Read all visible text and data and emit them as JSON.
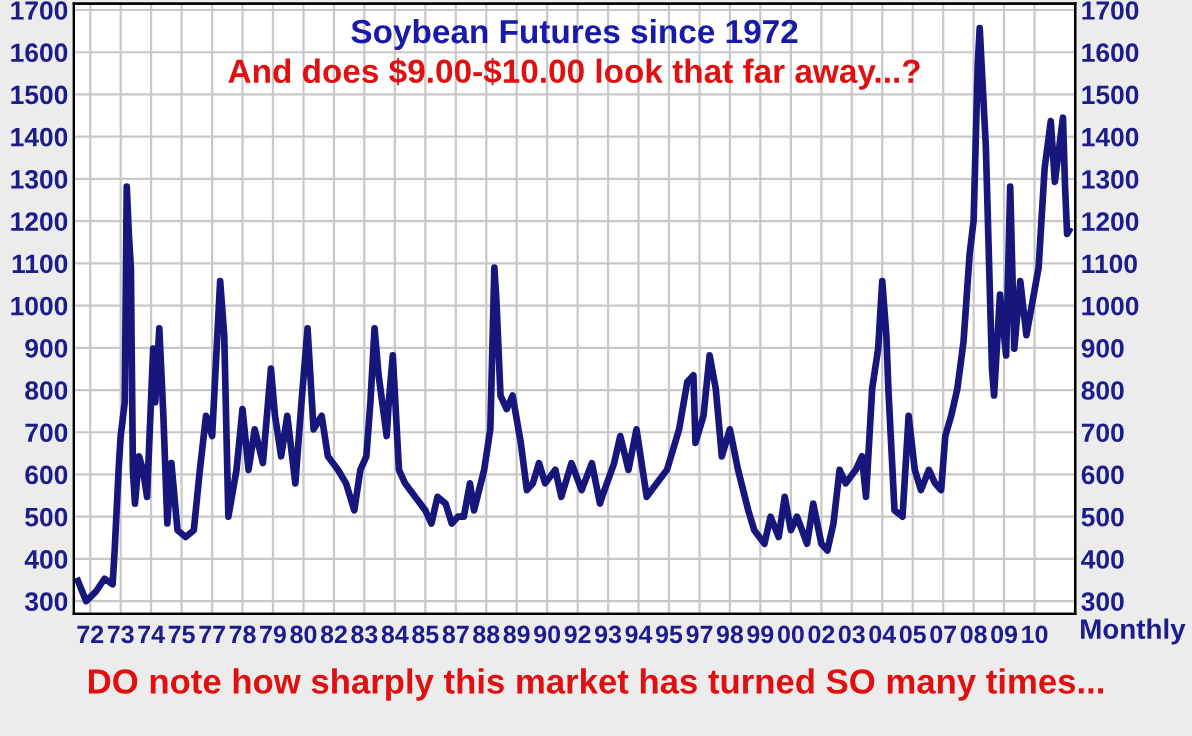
{
  "chart_data": {
    "type": "line",
    "title": "Soybean Futures since 1972",
    "annotations": [
      "And does $9.00-$10.00 look that far away...?",
      "Monthly",
      "DO note how sharply this market has turned SO many times..."
    ],
    "x": [
      "1971-07",
      "1971-11",
      "1972-04",
      "1972-08",
      "1972-12",
      "1973-01",
      "1973-03",
      "1973-04",
      "1973-06",
      "1973-07",
      "1973-08",
      "1973-09",
      "1973-10",
      "1973-11",
      "1974-01",
      "1974-03",
      "1974-05",
      "1974-08",
      "1974-09",
      "1974-11",
      "1975-01",
      "1975-03",
      "1975-05",
      "1975-08",
      "1975-12",
      "1976-04",
      "1976-07",
      "1976-10",
      "1977-01",
      "1977-05",
      "1977-07",
      "1977-09",
      "1978-01",
      "1978-04",
      "1978-07",
      "1978-10",
      "1979-02",
      "1979-06",
      "1979-08",
      "1979-11",
      "1980-02",
      "1980-06",
      "1980-09",
      "1980-12",
      "1981-03",
      "1981-07",
      "1981-10",
      "1982-03",
      "1982-07",
      "1982-11",
      "1983-02",
      "1983-05",
      "1983-07",
      "1983-09",
      "1983-11",
      "1984-03",
      "1984-04",
      "1984-06",
      "1984-09",
      "1984-12",
      "1985-05",
      "1985-10",
      "1986-01",
      "1986-04",
      "1986-08",
      "1986-11",
      "1987-02",
      "1987-05",
      "1987-08",
      "1987-10",
      "1988-03",
      "1988-06",
      "1988-08",
      "1988-09",
      "1988-11",
      "1989-02",
      "1989-05",
      "1989-09",
      "1989-12",
      "1990-03",
      "1990-06",
      "1990-09",
      "1991-02",
      "1991-05",
      "1991-10",
      "1992-03",
      "1992-08",
      "1992-12",
      "1993-01",
      "1993-07",
      "1993-10",
      "1994-02",
      "1994-06",
      "1994-11",
      "1995-04",
      "1995-09",
      "1996-03",
      "1996-07",
      "1996-10",
      "1996-11",
      "1997-03",
      "1997-06",
      "1997-09",
      "1997-12",
      "1998-04",
      "1998-08",
      "1999-01",
      "1999-04",
      "1999-09",
      "1999-12",
      "2000-04",
      "2000-07",
      "2000-10",
      "2001-01",
      "2001-06",
      "2001-09",
      "2002-01",
      "2002-04",
      "2002-07",
      "2002-10",
      "2003-01",
      "2003-06",
      "2003-09",
      "2003-11",
      "2004-02",
      "2004-05",
      "2004-07",
      "2004-09",
      "2004-10",
      "2005-01",
      "2005-05",
      "2005-08",
      "2005-11",
      "2006-02",
      "2006-06",
      "2006-09",
      "2006-12",
      "2007-02",
      "2007-05",
      "2007-08",
      "2007-11",
      "2008-02",
      "2008-04",
      "2008-06",
      "2008-07",
      "2008-10",
      "2009-01",
      "2009-02",
      "2009-05",
      "2009-08",
      "2009-10",
      "2009-12",
      "2010-03",
      "2010-06",
      "2010-09",
      "2010-12",
      "2011-03",
      "2011-06",
      "2011-08",
      "2011-12",
      "2012-01",
      "2012-02",
      "2012-03"
    ],
    "series": [
      {
        "color": "#16167c",
        "values": [
          348,
          300,
          324,
          353,
          340,
          420,
          611,
          691,
          771,
          1282,
          1170,
          1090,
          611,
          531,
          643,
          611,
          547,
          898,
          771,
          946,
          739,
          484,
          627,
          468,
          452,
          468,
          611,
          739,
          691,
          1058,
          930,
          500,
          611,
          755,
          611,
          707,
          627,
          851,
          739,
          643,
          739,
          579,
          771,
          946,
          707,
          739,
          643,
          611,
          579,
          515,
          611,
          643,
          771,
          946,
          835,
          691,
          771,
          882,
          611,
          579,
          547,
          515,
          484,
          547,
          531,
          484,
          500,
          500,
          579,
          515,
          611,
          707,
          1090,
          1010,
          787,
          755,
          787,
          675,
          563,
          579,
          627,
          579,
          611,
          547,
          627,
          563,
          627,
          531,
          547,
          627,
          691,
          611,
          707,
          547,
          579,
          611,
          707,
          819,
          835,
          675,
          739,
          882,
          803,
          643,
          707,
          611,
          515,
          468,
          436,
          500,
          452,
          547,
          468,
          500,
          436,
          531,
          436,
          420,
          484,
          611,
          579,
          611,
          643,
          547,
          803,
          898,
          1058,
          930,
          803,
          515,
          500,
          739,
          611,
          563,
          611,
          579,
          563,
          691,
          739,
          803,
          914,
          1122,
          1202,
          1569,
          1657,
          1377,
          851,
          787,
          1026,
          882,
          1282,
          898,
          1058,
          930,
          1010,
          1090,
          1325,
          1437,
          1293,
          1445,
          1282,
          1170,
          1178
        ]
      }
    ],
    "xlim": [
      "1971-05",
      "2012-06"
    ],
    "xticks": [
      {
        "value": "1972-01",
        "label": "72"
      },
      {
        "value": "1973-04",
        "label": "73"
      },
      {
        "value": "1974-07",
        "label": "74"
      },
      {
        "value": "1975-10",
        "label": "75"
      },
      {
        "value": "1977-01",
        "label": "77"
      },
      {
        "value": "1978-04",
        "label": "78"
      },
      {
        "value": "1979-07",
        "label": "79"
      },
      {
        "value": "1980-10",
        "label": "80"
      },
      {
        "value": "1982-01",
        "label": "82"
      },
      {
        "value": "1983-04",
        "label": "83"
      },
      {
        "value": "1984-07",
        "label": "84"
      },
      {
        "value": "1985-10",
        "label": "85"
      },
      {
        "value": "1987-01",
        "label": "87"
      },
      {
        "value": "1988-04",
        "label": "88"
      },
      {
        "value": "1989-07",
        "label": "89"
      },
      {
        "value": "1990-10",
        "label": "90"
      },
      {
        "value": "1992-01",
        "label": "92"
      },
      {
        "value": "1993-04",
        "label": "93"
      },
      {
        "value": "1994-07",
        "label": "94"
      },
      {
        "value": "1995-10",
        "label": "95"
      },
      {
        "value": "1997-01",
        "label": "97"
      },
      {
        "value": "1998-04",
        "label": "98"
      },
      {
        "value": "1999-07",
        "label": "99"
      },
      {
        "value": "2000-10",
        "label": "00"
      },
      {
        "value": "2002-01",
        "label": "02"
      },
      {
        "value": "2003-04",
        "label": "03"
      },
      {
        "value": "2004-07",
        "label": "04"
      },
      {
        "value": "2005-10",
        "label": "05"
      },
      {
        "value": "2007-01",
        "label": "07"
      },
      {
        "value": "2008-04",
        "label": "08"
      },
      {
        "value": "2009-07",
        "label": "09"
      },
      {
        "value": "2010-10",
        "label": "10"
      }
    ],
    "ylim": [
      270,
      1715
    ],
    "yticks": [
      300,
      400,
      500,
      600,
      700,
      800,
      900,
      1000,
      1100,
      1200,
      1300,
      1400,
      1500,
      1600,
      1700
    ],
    "y2lim": [
      270,
      1715
    ],
    "y2ticks": [
      300,
      400,
      500,
      600,
      700,
      800,
      900,
      1000,
      1100,
      1200,
      1300,
      1400,
      1500,
      1600,
      1700
    ],
    "grid": true,
    "legend": false,
    "marker": "none",
    "line_style": "solid"
  }
}
